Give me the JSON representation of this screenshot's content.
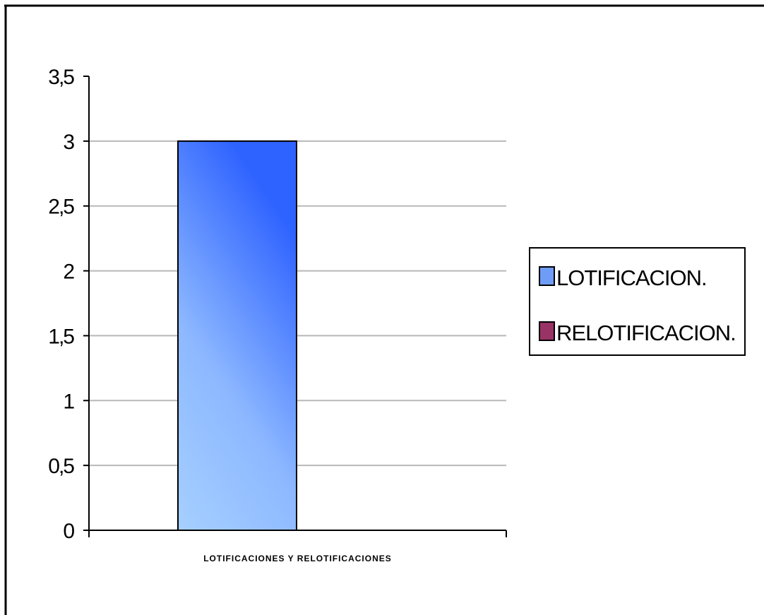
{
  "chart_data": {
    "type": "bar",
    "categories": [
      "LOTIFICACIONES Y RELOTIFICACIONES"
    ],
    "series": [
      {
        "name": "LOTIFICACION.",
        "values": [
          3
        ],
        "color": "#6f9cf7"
      },
      {
        "name": "RELOTIFICACION.",
        "values": [
          0
        ],
        "color": "#993366"
      }
    ],
    "ylim": [
      0,
      3.5
    ],
    "yticks": [
      "0",
      "0,5",
      "1",
      "1,5",
      "2",
      "2,5",
      "3",
      "3,5"
    ],
    "ytick_values": [
      0,
      0.5,
      1,
      1.5,
      2,
      2.5,
      3,
      3.5
    ],
    "grid": true,
    "legend_position": "right"
  }
}
